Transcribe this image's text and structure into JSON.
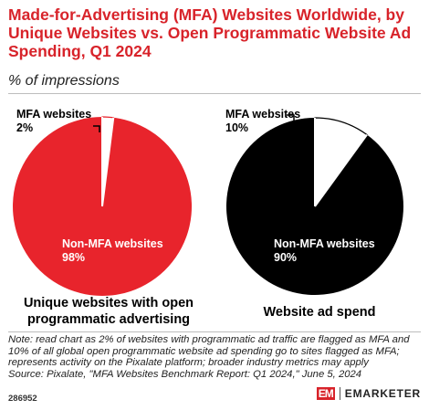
{
  "header": {
    "title": "Made-for-Advertising (MFA) Websites Worldwide, by Unique Websites vs. Open Programmatic Website Ad Spending, Q1 2024",
    "subtitle": "% of impressions"
  },
  "chart_data": [
    {
      "type": "pie",
      "title": "Unique websites with open programmatic advertising",
      "slices": [
        {
          "label": "MFA websites",
          "value": 2,
          "value_label": "2%",
          "color": "#ffffff"
        },
        {
          "label": "Non-MFA websites",
          "value": 98,
          "value_label": "98%",
          "color": "#e8242c"
        }
      ]
    },
    {
      "type": "pie",
      "title": "Website ad spend",
      "slices": [
        {
          "label": "MFA websites",
          "value": 10,
          "value_label": "10%",
          "color": "#ffffff"
        },
        {
          "label": "Non-MFA websites",
          "value": 90,
          "value_label": "90%",
          "color": "#000000"
        }
      ]
    }
  ],
  "footer": {
    "note": "Note: read chart as 2% of websites with programmatic ad traffic are flagged as MFA and 10% of all global open programmatic website ad spending go to sites flagged as MFA; represents activity on the Pixalate platform; broader industry metrics may apply",
    "source": "Source: Pixalate, \"MFA Websites Benchmark Report: Q1 2024,\" June 5, 2024",
    "chart_id": "286952",
    "brand_mark": "EM",
    "brand_name": "EMARKETER"
  }
}
